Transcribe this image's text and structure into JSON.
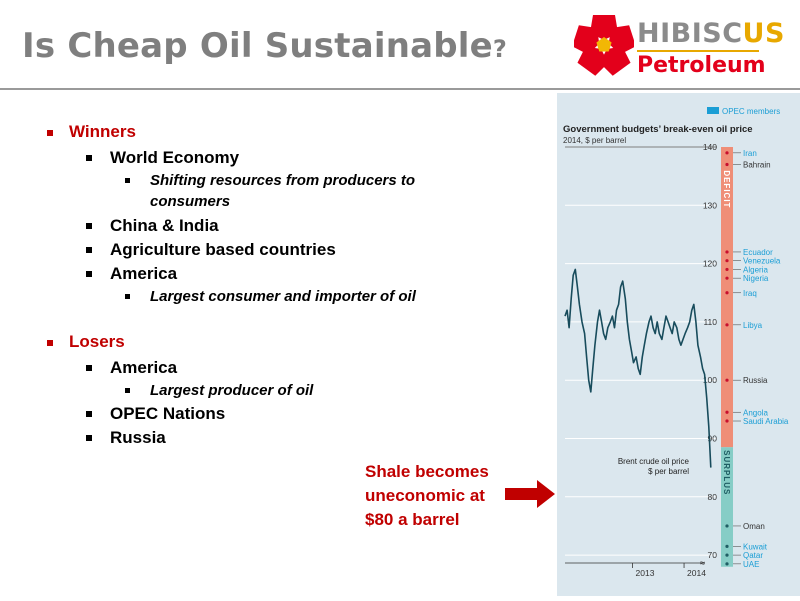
{
  "slide": {
    "title": "Is Cheap Oil Sustainable",
    "title_qmark": "?"
  },
  "logo": {
    "word1_main": "HIBISC",
    "word1_accent": "US",
    "word2": "Petroleum",
    "colors": {
      "red": "#e3001b",
      "gold": "#e8a800",
      "gray": "#8b8b8b"
    }
  },
  "bullets": {
    "winners_label": "Winners",
    "winners": {
      "world_economy": "World Economy",
      "shifting_1": "Shifting resources from producers to",
      "shifting_2": "consumers",
      "china_india": "China & India",
      "agri": "Agriculture based countries",
      "america": "America",
      "america_sub": "Largest consumer and importer of oil"
    },
    "losers_label": "Losers",
    "losers": {
      "america": "America",
      "america_sub": "Largest producer of oil",
      "opec": "OPEC Nations",
      "russia": "Russia"
    }
  },
  "callout": {
    "line1": "Shale becomes",
    "line2": "uneconomic at",
    "line3": "$80 a barrel",
    "color": "#c00000"
  },
  "chart_data": {
    "type": "line",
    "title": "Government budgets’ break-even oil price",
    "subtitle": "2014, $ per barrel",
    "legend": "OPEC members",
    "legend_position": "top-right",
    "ylim": [
      68,
      142
    ],
    "yticks": [
      70,
      80,
      90,
      100,
      110,
      120,
      130,
      140
    ],
    "xticks": [
      "2013",
      "2014"
    ],
    "grid": true,
    "band_labels": {
      "deficit": "DEFICIT",
      "surplus": "SURPLUS"
    },
    "colors": {
      "line": "#184c5c",
      "deficit": "#ef8e77",
      "surplus": "#86cdc6",
      "opec": "#1b9ed5",
      "other": "#333333",
      "dot": "#c8102e"
    },
    "series": [
      {
        "name": "Brent crude oil price",
        "label_line1": "Brent crude oil price",
        "label_line2": "$ per barrel",
        "x": [
          2012.0,
          2012.04,
          2012.08,
          2012.12,
          2012.16,
          2012.2,
          2012.24,
          2012.28,
          2012.33,
          2012.38,
          2012.42,
          2012.46,
          2012.5,
          2012.54,
          2012.58,
          2012.63,
          2012.67,
          2012.71,
          2012.75,
          2012.79,
          2012.83,
          2012.88,
          2012.92,
          2012.96,
          2013.0,
          2013.04,
          2013.08,
          2013.12,
          2013.17,
          2013.21,
          2013.25,
          2013.29,
          2013.33,
          2013.38,
          2013.42,
          2013.46,
          2013.5,
          2013.54,
          2013.58,
          2013.63,
          2013.67,
          2013.71,
          2013.75,
          2013.79,
          2013.83,
          2013.88,
          2013.92,
          2013.96,
          2014.0,
          2014.04,
          2014.08,
          2014.12,
          2014.17,
          2014.21,
          2014.25,
          2014.29,
          2014.33,
          2014.38,
          2014.42,
          2014.46,
          2014.5,
          2014.54,
          2014.58,
          2014.63,
          2014.67,
          2014.71,
          2014.75,
          2014.79,
          2014.83
        ],
        "values": [
          111,
          112,
          109,
          114,
          118,
          119,
          116,
          113,
          110,
          108,
          104,
          100,
          98,
          102,
          106,
          110,
          112,
          110,
          108,
          107,
          109,
          110,
          111,
          109,
          112,
          113,
          116,
          117,
          114,
          110,
          107,
          105,
          103,
          104,
          102,
          101,
          104,
          106,
          108,
          110,
          111,
          109,
          108,
          110,
          108,
          107,
          109,
          111,
          110,
          109,
          108,
          110,
          109,
          107,
          106,
          107,
          108,
          109,
          110,
          112,
          113,
          110,
          106,
          104,
          102,
          101,
          97,
          92,
          85
        ]
      }
    ],
    "breakeven": [
      {
        "country": "Iran",
        "value": 139,
        "opec": true
      },
      {
        "country": "Bahrain",
        "value": 137,
        "opec": false
      },
      {
        "country": "Ecuador",
        "value": 122,
        "opec": true
      },
      {
        "country": "Venezuela",
        "value": 120.5,
        "opec": true
      },
      {
        "country": "Algeria",
        "value": 119,
        "opec": true
      },
      {
        "country": "Nigeria",
        "value": 117.5,
        "opec": true
      },
      {
        "country": "Iraq",
        "value": 115,
        "opec": true
      },
      {
        "country": "Libya",
        "value": 109.5,
        "opec": true
      },
      {
        "country": "Russia",
        "value": 100,
        "opec": false
      },
      {
        "country": "Angola",
        "value": 94.5,
        "opec": true
      },
      {
        "country": "Saudi Arabia",
        "value": 93,
        "opec": true
      },
      {
        "country": "Oman",
        "value": 75,
        "opec": false
      },
      {
        "country": "Kuwait",
        "value": 71.5,
        "opec": true
      },
      {
        "country": "Qatar",
        "value": 70,
        "opec": true
      },
      {
        "country": "UAE",
        "value": 68.5,
        "opec": true
      }
    ]
  }
}
